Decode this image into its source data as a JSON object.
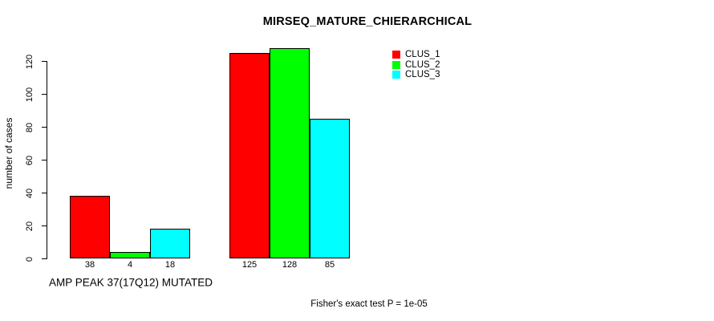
{
  "chart_data": {
    "type": "bar",
    "title": "MIRSEQ_MATURE_CHIERARCHICAL",
    "ylabel": "number of cases",
    "xlabel": "AMP PEAK 37(17Q12) MUTATED",
    "annotation": "Fisher's exact test P = 1e-05",
    "yticks": [
      0,
      20,
      40,
      60,
      80,
      100,
      120
    ],
    "ylim": [
      0,
      130
    ],
    "grid": false,
    "categories": [
      "AMP PEAK 37(17Q12) MUTATED",
      ""
    ],
    "series": [
      {
        "name": "CLUS_1",
        "color": "#ff0000",
        "values": [
          38,
          125
        ]
      },
      {
        "name": "CLUS_2",
        "color": "#00ff00",
        "values": [
          4,
          128
        ]
      },
      {
        "name": "CLUS_3",
        "color": "#00ffff",
        "values": [
          18,
          85
        ]
      }
    ],
    "bar_labels": [
      [
        "38",
        "4",
        "18"
      ],
      [
        "125",
        "128",
        "85"
      ]
    ],
    "legend": {
      "position": "top-right",
      "entries": [
        "CLUS_1",
        "CLUS_2",
        "CLUS_3"
      ]
    },
    "bar_border_color": "#000000",
    "background": "#ffffff",
    "text_color": "#000000"
  }
}
